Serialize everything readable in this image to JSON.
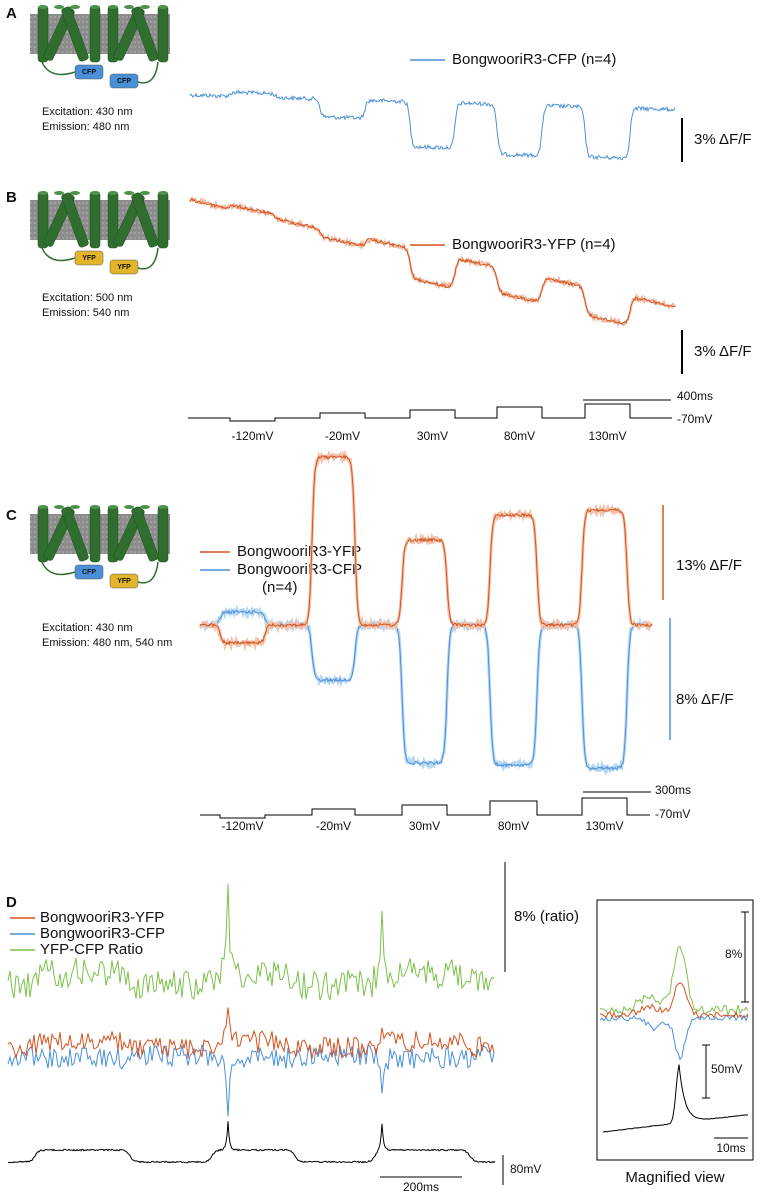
{
  "panel_a": {
    "label": "A",
    "protein_tags": [
      "CFP",
      "CFP"
    ],
    "excitation": "Excitation: 430 nm",
    "emission": "Emission: 480 nm",
    "legend": [
      "BongwooriR3-CFP (n=4)"
    ],
    "scale_bar": "3% ΔF/F"
  },
  "panel_b": {
    "label": "B",
    "protein_tags": [
      "YFP",
      "YFP"
    ],
    "excitation": "Excitation: 500 nm",
    "emission": "Emission: 540 nm",
    "legend": [
      "BongwooriR3-YFP (n=4)"
    ],
    "scale_bar": "3% ΔF/F",
    "time_bar": "400ms",
    "holding": "-70mV",
    "voltage_steps": [
      "-120mV",
      "-20mV",
      "30mV",
      "80mV",
      "130mV"
    ]
  },
  "panel_c": {
    "label": "C",
    "protein_tags": [
      "CFP",
      "YFP"
    ],
    "excitation": "Excitation: 430 nm",
    "emission": "Emission: 480 nm, 540 nm",
    "legend": [
      "BongwooriR3-YFP",
      "BongwooriR3-CFP",
      "(n=4)"
    ],
    "scale_bars": [
      "13% ΔF/F",
      "8% ΔF/F"
    ],
    "time_bar": "300ms",
    "holding": "-70mV",
    "voltage_steps": [
      "-120mV",
      "-20mV",
      "30mV",
      "80mV",
      "130mV"
    ]
  },
  "panel_d": {
    "label": "D",
    "legend": [
      "BongwooriR3-YFP",
      "BongwooriR3-CFP",
      "YFP-CFP Ratio"
    ],
    "scale_bar_ratio": "8% (ratio)",
    "scale_bar_voltage": "80mV",
    "time_bar": "200ms",
    "inset": {
      "scale_bar_ratio": "8%",
      "scale_bar_voltage": "50mV",
      "time_bar": "10ms",
      "caption": "Magnified view"
    }
  }
}
